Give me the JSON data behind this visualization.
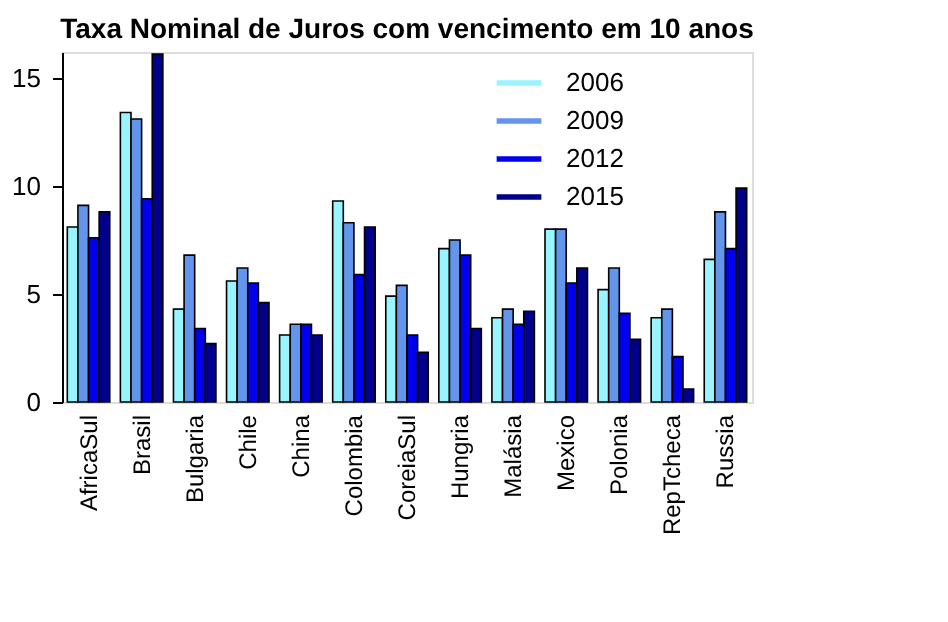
{
  "chart_data": {
    "type": "bar",
    "title": "Taxa Nominal de Juros com vencimento em 10 anos",
    "categories": [
      "AfricaSul",
      "Brasil",
      "Bulgaria",
      "Chile",
      "China",
      "Colombia",
      "CoreiaSul",
      "Hungria",
      "Malásia",
      "Mexico",
      "Polonia",
      "RepTcheca",
      "Russia"
    ],
    "series": [
      {
        "name": "2006",
        "color": "#98f5ff",
        "values": [
          8.1,
          13.4,
          4.3,
          5.6,
          3.1,
          9.3,
          4.9,
          7.1,
          3.9,
          8.0,
          5.2,
          3.9,
          6.6
        ]
      },
      {
        "name": "2009",
        "color": "#6495ed",
        "values": [
          9.1,
          13.1,
          6.8,
          6.2,
          3.6,
          8.3,
          5.4,
          7.5,
          4.3,
          8.0,
          6.2,
          4.3,
          8.8
        ]
      },
      {
        "name": "2012",
        "color": "#0000ee",
        "values": [
          7.6,
          9.4,
          3.4,
          5.5,
          3.6,
          5.9,
          3.1,
          6.8,
          3.6,
          5.5,
          4.1,
          2.1,
          7.1
        ]
      },
      {
        "name": "2015",
        "color": "#00008b",
        "values": [
          8.8,
          16.1,
          2.7,
          4.6,
          3.1,
          8.1,
          2.3,
          3.4,
          4.2,
          6.2,
          2.9,
          0.6,
          9.9
        ]
      }
    ],
    "ylim": [
      0,
      16.2
    ],
    "yticks": [
      0,
      5,
      10,
      15
    ],
    "grid": false,
    "legend": "top right"
  }
}
